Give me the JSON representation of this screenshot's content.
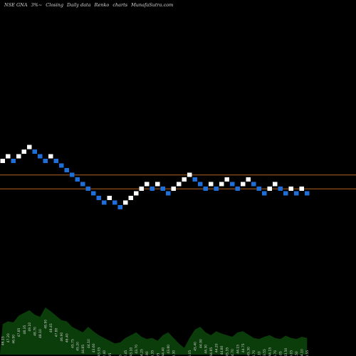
{
  "header": {
    "ticker": "NSE GNA",
    "change": "3%~",
    "label_closing": "Closing",
    "label_daily": "Daily data",
    "label_renko": "Renko",
    "label_charts": "charts",
    "site": "MunafaSutra.com"
  },
  "colors": {
    "background": "#000000",
    "up_brick": "#ffffff",
    "down_brick": "#1e6fd9",
    "level_line": "#b5641f",
    "volume": "#0b3d0b"
  },
  "chart_data": {
    "type": "renko",
    "xlabel": "",
    "ylabel": "",
    "grid": false,
    "brick_levels": [
      -2,
      -1,
      -2,
      -1,
      0,
      1,
      0,
      -1,
      -2,
      -1,
      -2,
      -3,
      -4,
      -5,
      -6,
      -7,
      -8,
      -9,
      -10,
      -11,
      -10,
      -11,
      -12,
      -11,
      -10,
      -9,
      -8,
      -7,
      -8,
      -7,
      -8,
      -9,
      -8,
      -7,
      -6,
      -5,
      -6,
      -7,
      -8,
      -7,
      -8,
      -7,
      -6,
      -7,
      -8,
      -7,
      -6,
      -7,
      -8,
      -9,
      -8,
      -7,
      -8,
      -9,
      -8,
      -9,
      -8,
      -9
    ],
    "level_lines": [
      -5,
      -8
    ],
    "volume_relative": [
      0.55,
      0.6,
      0.58,
      0.7,
      0.75,
      0.8,
      0.72,
      0.68,
      0.85,
      0.78,
      0.7,
      0.62,
      0.6,
      0.5,
      0.45,
      0.4,
      0.5,
      0.42,
      0.35,
      0.3,
      0.25,
      0.2,
      0.22,
      0.3,
      0.35,
      0.4,
      0.32,
      0.28,
      0.3,
      0.25,
      0.35,
      0.4,
      0.3,
      0.2,
      0.12,
      0.3,
      0.45,
      0.5,
      0.4,
      0.35,
      0.42,
      0.38,
      0.35,
      0.32,
      0.4,
      0.42,
      0.36,
      0.3,
      0.28,
      0.32,
      0.35,
      0.3,
      0.28,
      0.34,
      0.3,
      0.28,
      0.32,
      0.3
    ],
    "volume_labels": [
      "46.15",
      "47.20",
      "46.90",
      "47.85",
      "48.35",
      "49.10",
      "48.70",
      "48.10",
      "48.90",
      "48.45",
      "47.80",
      "46.90",
      "46.40",
      "45.75",
      "45.20",
      "44.85",
      "44.10",
      "43.60",
      "43.05",
      "42.40",
      "42.95",
      "42.30",
      "41.85",
      "42.45",
      "43.10",
      "43.70",
      "44.25",
      "44.90",
      "44.35",
      "44.95",
      "44.40",
      "43.80",
      "44.30",
      "44.95",
      "45.50",
      "46.05",
      "45.40",
      "44.90",
      "44.30",
      "44.85",
      "44.20",
      "44.80",
      "45.35",
      "44.70",
      "44.15",
      "44.75",
      "45.30",
      "44.70",
      "44.10",
      "43.55",
      "44.15",
      "44.70",
      "44.05",
      "43.50",
      "44.05",
      "43.50",
      "44.10",
      "43.55"
    ]
  }
}
